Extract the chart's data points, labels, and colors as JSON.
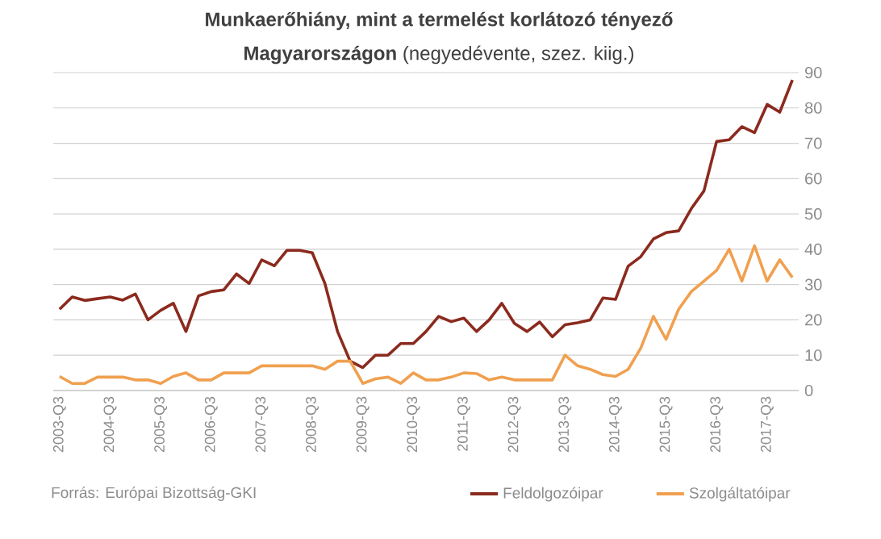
{
  "chart_data": {
    "type": "line",
    "title": "Munkaerőhiány, mint a termelést korlátozó tényező",
    "subtitle": "**Magyarországon** (negyedévente, szez. kiig.)",
    "categories": [
      "2003-Q3",
      null,
      null,
      null,
      "2004-Q3",
      null,
      null,
      null,
      "2005-Q3",
      null,
      null,
      null,
      "2006-Q3",
      null,
      null,
      null,
      "2007-Q3",
      null,
      null,
      null,
      "2008-Q3",
      null,
      null,
      null,
      "2009-Q3",
      null,
      null,
      null,
      "2010-Q3",
      null,
      null,
      null,
      "2011-Q3",
      null,
      null,
      null,
      "2012-Q3",
      null,
      null,
      null,
      "2013-Q3",
      null,
      null,
      null,
      "2014-Q3",
      null,
      null,
      null,
      "2015-Q3",
      null,
      null,
      null,
      "2016-Q3",
      null,
      null,
      null,
      "2017-Q3",
      null,
      null
    ],
    "series": [
      {
        "name": "Feldolgozóipar",
        "color": "#8b2a1e",
        "values": [
          23,
          26.5,
          25.5,
          26,
          26.5,
          25.6,
          27.3,
          20,
          22.7,
          24.7,
          16.7,
          26.8,
          28,
          28.5,
          33,
          30.3,
          37,
          35.3,
          39.7,
          39.7,
          39,
          30.3,
          16.7,
          8.3,
          6.5,
          10,
          10,
          13.3,
          13.3,
          16.7,
          21,
          19.5,
          20.5,
          16.7,
          20,
          24.7,
          19,
          16.7,
          19.4,
          15.2,
          18.6,
          19.2,
          20,
          26.2,
          25.8,
          35.2,
          37.9,
          42.9,
          44.7,
          45.2,
          51.5,
          56.5,
          70.5,
          71,
          74.7,
          73,
          81,
          78.8,
          87.9
        ]
      },
      {
        "name": "Szolgáltatóipar",
        "color": "#f0a050",
        "values": [
          4,
          2,
          2,
          3.8,
          3.8,
          3.8,
          3,
          3,
          2,
          4,
          5,
          3,
          3,
          5,
          5,
          5,
          7,
          7,
          7,
          7,
          7,
          6,
          8.3,
          8.3,
          2,
          3.3,
          3.8,
          2,
          5,
          3,
          3,
          3.8,
          5,
          4.8,
          3,
          3.8,
          3,
          3,
          3,
          3,
          10,
          7,
          6,
          4.5,
          4,
          6,
          12,
          21,
          14.5,
          23,
          28,
          31,
          34,
          40,
          31,
          41,
          31,
          37,
          32
        ]
      }
    ],
    "ylim": [
      0,
      90
    ],
    "yticks": [
      0,
      10,
      20,
      30,
      40,
      50,
      60,
      70,
      80,
      90
    ],
    "grid": "y",
    "legend": "bottom right",
    "line_style": "solid",
    "marker": "none",
    "annotations": [
      "Forrás: Európai Bizottság-GKI"
    ]
  }
}
